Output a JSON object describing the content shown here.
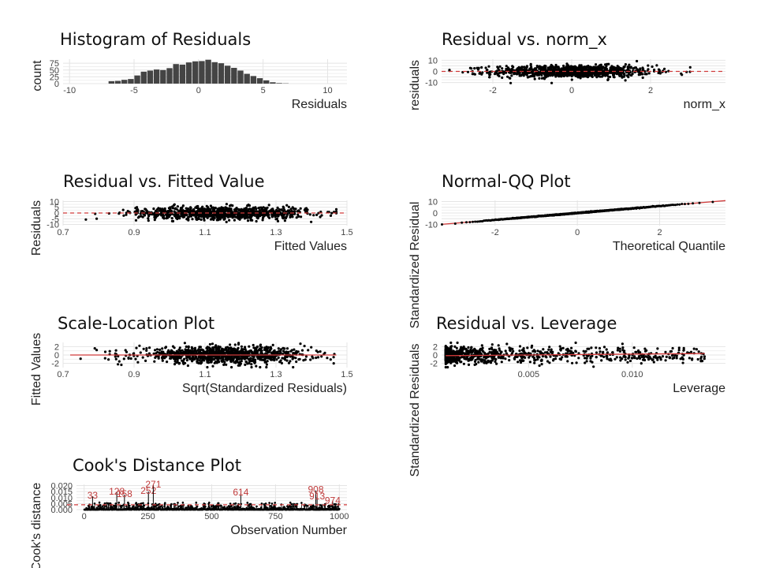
{
  "chart_data": [
    {
      "id": "hist",
      "type": "bar",
      "title": "Histogram of Residuals",
      "xlabel": "Residuals",
      "ylabel": "count",
      "xlim": [
        -10.5,
        11.5
      ],
      "ylim": [
        0,
        90
      ],
      "xticks": [
        -10,
        -5,
        0,
        5,
        10
      ],
      "yticks": [
        0,
        25,
        50,
        75
      ],
      "bin_width": 0.5,
      "bins": [
        {
          "x": -6.75,
          "count": 9
        },
        {
          "x": -6.25,
          "count": 10
        },
        {
          "x": -5.75,
          "count": 14
        },
        {
          "x": -5.25,
          "count": 17
        },
        {
          "x": -4.75,
          "count": 30
        },
        {
          "x": -4.25,
          "count": 44
        },
        {
          "x": -3.75,
          "count": 48
        },
        {
          "x": -3.25,
          "count": 52
        },
        {
          "x": -2.75,
          "count": 50
        },
        {
          "x": -2.25,
          "count": 57
        },
        {
          "x": -1.75,
          "count": 72
        },
        {
          "x": -1.25,
          "count": 70
        },
        {
          "x": -0.75,
          "count": 78
        },
        {
          "x": -0.25,
          "count": 82
        },
        {
          "x": 0.25,
          "count": 83
        },
        {
          "x": 0.75,
          "count": 88
        },
        {
          "x": 1.25,
          "count": 79
        },
        {
          "x": 1.75,
          "count": 75
        },
        {
          "x": 2.25,
          "count": 66
        },
        {
          "x": 2.75,
          "count": 58
        },
        {
          "x": 3.25,
          "count": 48
        },
        {
          "x": 3.75,
          "count": 36
        },
        {
          "x": 4.25,
          "count": 28
        },
        {
          "x": 4.75,
          "count": 20
        },
        {
          "x": 5.25,
          "count": 12
        },
        {
          "x": 5.75,
          "count": 5
        },
        {
          "x": 6.25,
          "count": 2
        },
        {
          "x": 6.75,
          "count": 1
        }
      ]
    },
    {
      "id": "normx",
      "type": "scatter",
      "title": "Residual vs. norm_x",
      "xlabel": "norm_x",
      "ylabel": "residuals",
      "xlim": [
        -3.3,
        3.9
      ],
      "ylim": [
        -11,
        11
      ],
      "xticks": [
        -2,
        0,
        2
      ],
      "yticks": [
        -10,
        -5,
        0,
        5,
        10
      ],
      "ytick_labels": [
        "-10",
        "",
        "0",
        "",
        "10"
      ],
      "n_points": 1000,
      "x_distribution": "normal",
      "residual_sd": 2.7,
      "reference_line": {
        "y": 0,
        "style": "dashed",
        "color": "#d03a3a"
      }
    },
    {
      "id": "fitted",
      "type": "scatter",
      "title": "Residual vs. Fitted Value",
      "xlabel": "Fitted Values",
      "ylabel": "Residuals",
      "xlim": [
        0.7,
        1.5
      ],
      "ylim": [
        -11,
        11
      ],
      "xticks": [
        0.7,
        0.9,
        1.1,
        1.3,
        1.5
      ],
      "yticks": [
        -10,
        -5,
        0,
        5,
        10
      ],
      "ytick_labels": [
        "-10",
        "-5",
        "0",
        "5",
        "10"
      ],
      "n_points": 1000,
      "x_center": 1.15,
      "x_sd": 0.12,
      "residual_sd": 2.7,
      "reference_line": {
        "y": 0,
        "style": "dashed",
        "color": "#d03a3a"
      }
    },
    {
      "id": "qq",
      "type": "scatter",
      "title": "Normal-QQ Plot",
      "xlabel": "Theoretical Quantile",
      "ylabel": "Standardized Residual",
      "xlim": [
        -3.3,
        3.6
      ],
      "ylim": [
        -11,
        11
      ],
      "xticks": [
        -2,
        0,
        2
      ],
      "yticks": [
        -10,
        -5,
        0,
        5,
        10
      ],
      "ytick_labels": [
        "-10",
        "",
        "0",
        "",
        "10"
      ],
      "n_points": 1000,
      "slope": 3.0,
      "reference_line": {
        "slope": 3.0,
        "intercept": 0,
        "color": "#d03a3a"
      }
    },
    {
      "id": "scaleloc",
      "type": "scatter",
      "title": "Scale-Location Plot",
      "xlabel": "Sqrt(Standardized Residuals)",
      "ylabel": "Fitted Values",
      "xlim": [
        0.7,
        1.5
      ],
      "ylim": [
        -3,
        3
      ],
      "xticks": [
        0.7,
        0.9,
        1.1,
        1.3,
        1.5
      ],
      "yticks": [
        -2,
        0,
        2
      ],
      "n_points": 1000,
      "x_center": 1.15,
      "x_sd": 0.12,
      "residual_sd": 0.95,
      "smooth_line": {
        "y": 0,
        "color": "#d03a3a"
      }
    },
    {
      "id": "leverage",
      "type": "scatter",
      "title": "Residual vs. Leverage",
      "xlabel": "Leverage",
      "ylabel": "Standardized Residuals",
      "xlim": [
        0.0008,
        0.0145
      ],
      "ylim": [
        -3,
        3
      ],
      "xticks": [
        0.005,
        0.01
      ],
      "xtick_labels": [
        "0.005",
        "0.010"
      ],
      "yticks": [
        -2,
        0,
        2
      ],
      "n_points": 1000,
      "min_leverage": 0.001,
      "max_leverage": 0.0135,
      "residual_sd": 0.95,
      "smooth_line": {
        "from": [
          0.001,
          -0.15
        ],
        "to": [
          0.0135,
          0.35
        ],
        "color": "#d03a3a"
      }
    },
    {
      "id": "cook",
      "type": "scatter",
      "title": "Cook's Distance Plot",
      "xlabel": "Observation Number",
      "ylabel": "Cook's distance",
      "xlim": [
        -30,
        1030
      ],
      "ylim": [
        0,
        0.021
      ],
      "xticks": [
        0,
        250,
        500,
        750,
        1000
      ],
      "yticks": [
        0,
        0.005,
        0.01,
        0.015,
        0.02
      ],
      "ytick_labels": [
        "0.000",
        "0.005",
        "0.010",
        "0.015",
        "0.020"
      ],
      "n_points": 1000,
      "threshold": {
        "y": 0.004,
        "style": "dashed",
        "color": "#d03a3a"
      },
      "labels": [
        {
          "id": "33",
          "x": 33,
          "y": 0.011
        },
        {
          "id": "128",
          "x": 128,
          "y": 0.0145
        },
        {
          "id": "158",
          "x": 158,
          "y": 0.0125
        },
        {
          "id": "252",
          "x": 252,
          "y": 0.015
        },
        {
          "id": "271",
          "x": 271,
          "y": 0.0205
        },
        {
          "id": "614",
          "x": 614,
          "y": 0.0138
        },
        {
          "id": "908",
          "x": 908,
          "y": 0.016
        },
        {
          "id": "913",
          "x": 913,
          "y": 0.0105
        },
        {
          "id": "974",
          "x": 974,
          "y": 0.007
        }
      ]
    }
  ]
}
